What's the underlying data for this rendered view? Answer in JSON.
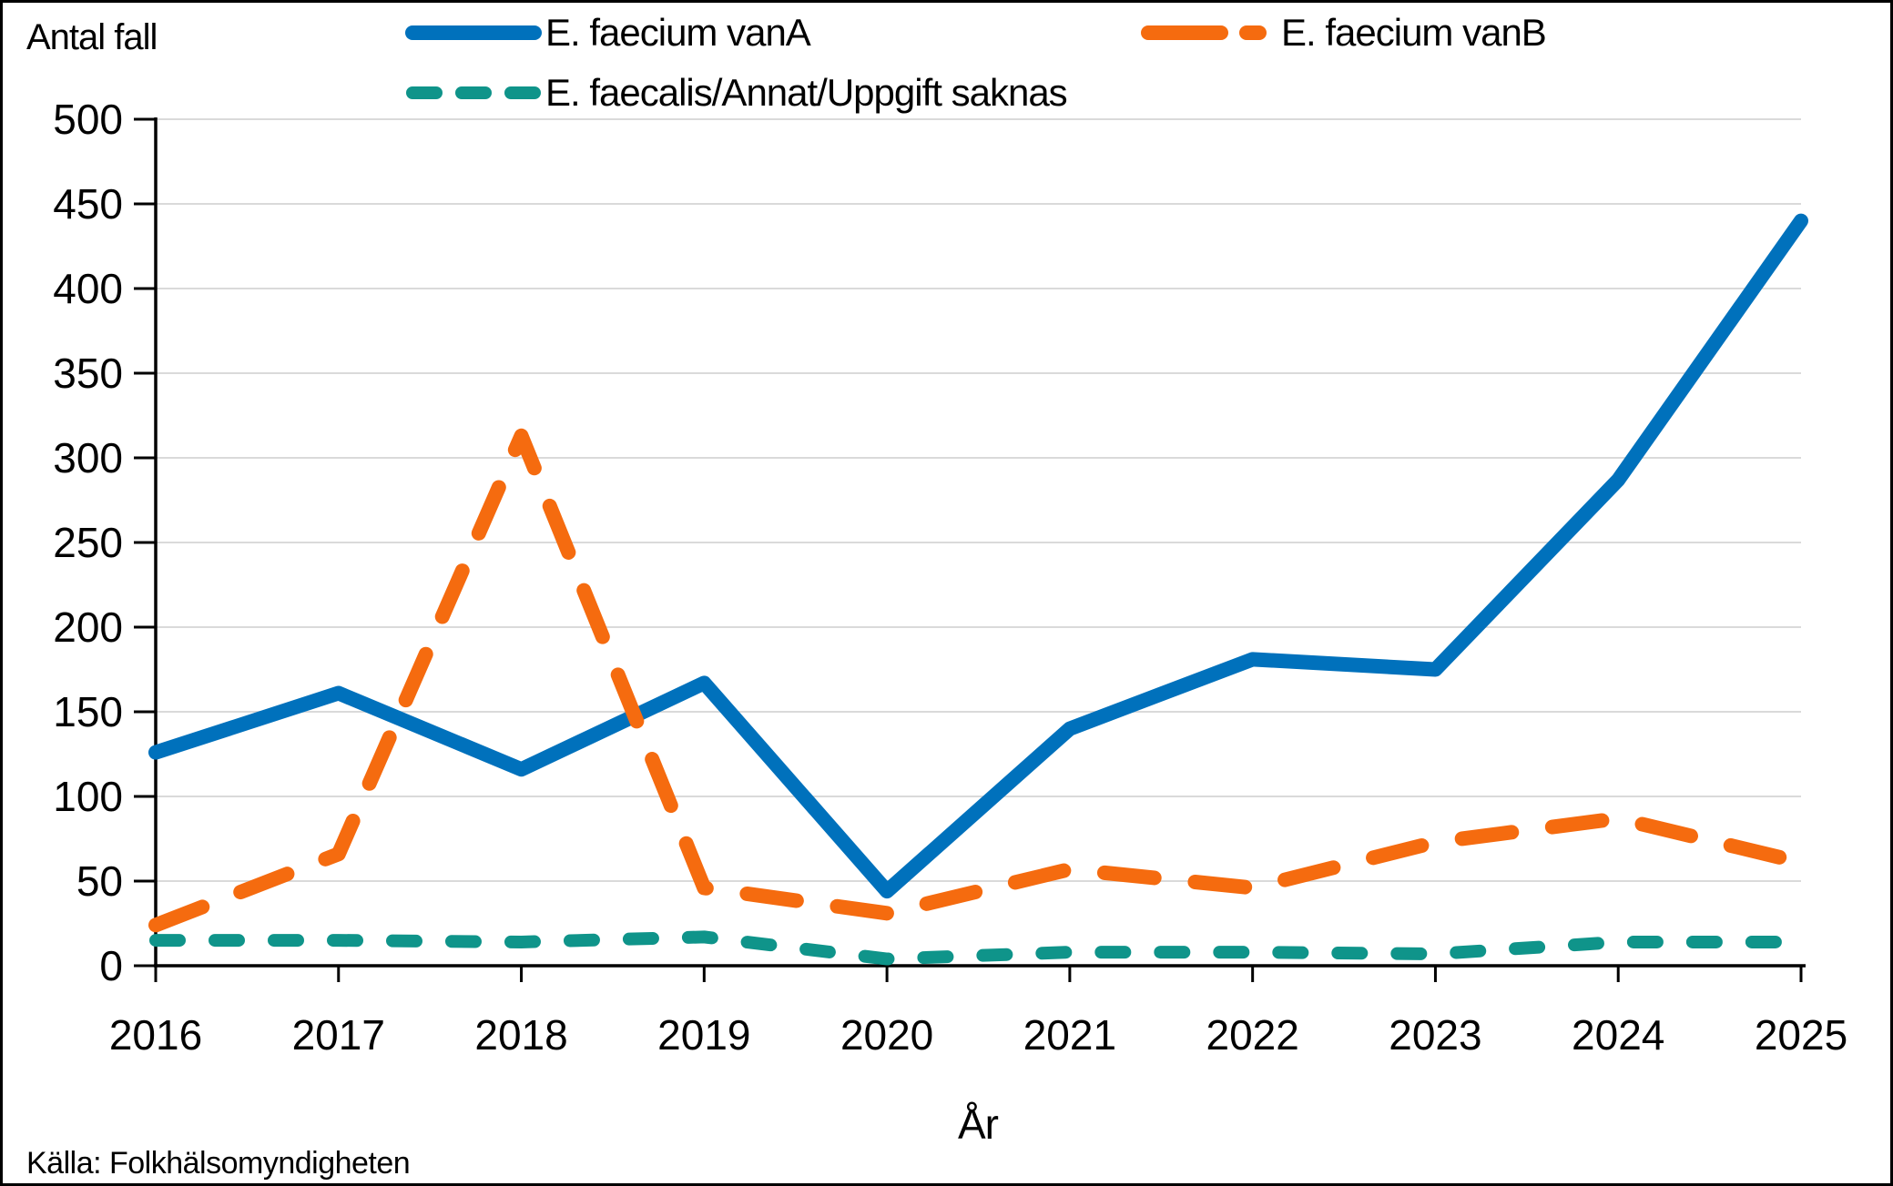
{
  "header": {
    "y_axis_title": "Antal fall",
    "x_axis_title": "År",
    "source": "Källa: Folkhälsomyndigheten"
  },
  "styles": {
    "background": "#FFFFFF",
    "grid_color": "#DADADA",
    "axis_color": "#000000",
    "vanA_color": "#0071BC",
    "vanB_color": "#F56B0F",
    "faecalis_color": "#0F948A"
  },
  "chart_data": {
    "type": "line",
    "title": "",
    "xlabel": "År",
    "ylabel": "Antal fall",
    "x": [
      2016,
      2017,
      2018,
      2019,
      2020,
      2021,
      2022,
      2023,
      2024,
      2025
    ],
    "series": [
      {
        "id": "vana",
        "name": "E. faecium vanA",
        "color": "#0071BC",
        "dash": "solid",
        "values": [
          126,
          161,
          116,
          167,
          44,
          140,
          181,
          175,
          287,
          440
        ]
      },
      {
        "id": "vanb",
        "name": "E. faecium vanB",
        "color": "#F56B0F",
        "dash": "long-dash",
        "values": [
          24,
          66,
          313,
          46,
          31,
          57,
          46,
          73,
          87,
          61
        ]
      },
      {
        "id": "faecalis",
        "name": "E. faecalis/Annat/Uppgift saknas",
        "color": "#0F948A",
        "dash": "short-dash",
        "values": [
          15,
          15,
          14,
          17,
          4,
          8,
          8,
          7,
          14,
          14
        ]
      }
    ],
    "ylim": [
      0,
      500
    ],
    "ytick_step": 50,
    "grid": true,
    "legend_position": "top",
    "source": "Källa: Folkhälsomyndigheten"
  }
}
